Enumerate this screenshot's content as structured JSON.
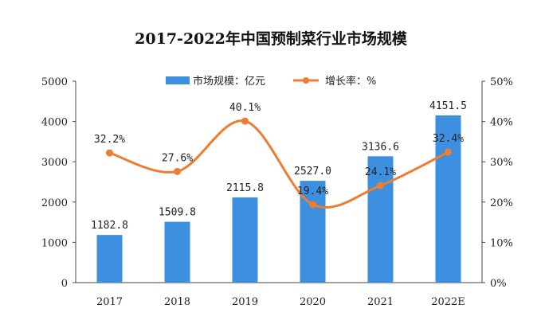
{
  "chart_data": {
    "type": "bar+line",
    "title": "2017-2022年中国预制菜行业市场规模",
    "categories": [
      "2017",
      "2018",
      "2019",
      "2020",
      "2021",
      "2022E"
    ],
    "series": [
      {
        "name": "市场规模：亿元",
        "type": "bar",
        "axis": "left",
        "values": [
          1182.8,
          1509.8,
          2115.8,
          2527.0,
          3136.6,
          4151.5
        ],
        "labels": [
          "1182.8",
          "1509.8",
          "2115.8",
          "2527.0",
          "3136.6",
          "4151.5"
        ],
        "color": "#3d8fe0"
      },
      {
        "name": "增长率：%",
        "type": "line",
        "axis": "right",
        "values": [
          32.2,
          27.6,
          40.1,
          19.4,
          24.1,
          32.4
        ],
        "labels": [
          "32.2%",
          "27.6%",
          "40.1%",
          "19.4%",
          "24.1%",
          "32.4%"
        ],
        "color": "#ed7d31"
      }
    ],
    "y_left": {
      "range": [
        0,
        5000
      ],
      "ticks": [
        "0",
        "1000",
        "2000",
        "3000",
        "4000",
        "5000"
      ]
    },
    "y_right": {
      "range": [
        0,
        50
      ],
      "ticks": [
        "0%",
        "10%",
        "20%",
        "30%",
        "40%",
        "50%"
      ]
    },
    "legend": "top-center",
    "grid": false
  }
}
